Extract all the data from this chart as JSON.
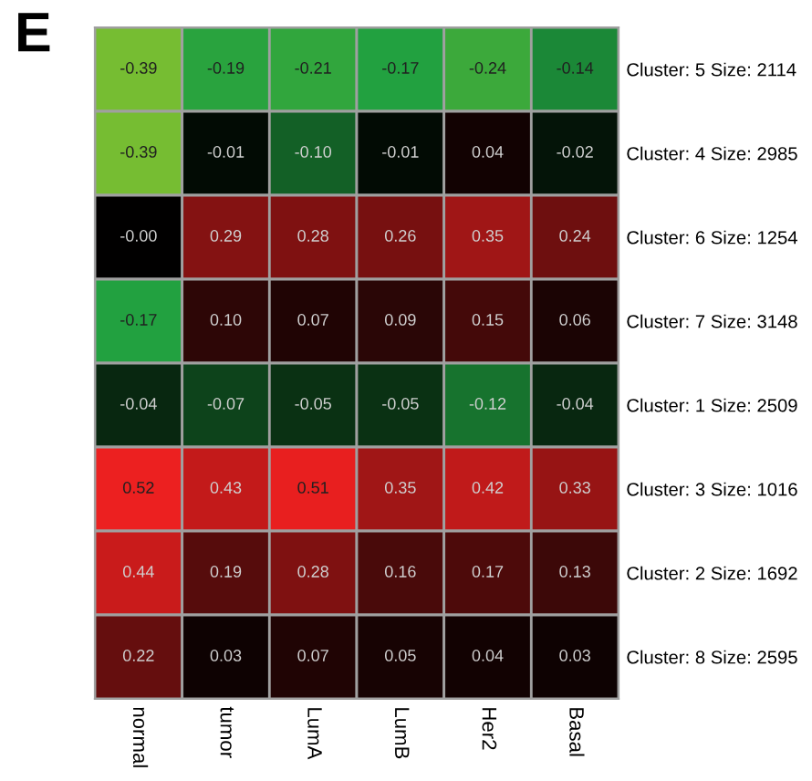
{
  "chart_data": {
    "type": "heatmap",
    "title": "E",
    "categories": [
      "normal",
      "tumor",
      "LumA",
      "LumB",
      "Her2",
      "Basal"
    ],
    "y_categories": [
      "Cluster: 5 Size: 2114",
      "Cluster: 4 Size: 2985",
      "Cluster: 6 Size: 1254",
      "Cluster: 7 Size: 3148",
      "Cluster: 1 Size: 2509",
      "Cluster: 3 Size: 1016",
      "Cluster: 2 Size: 1692",
      "Cluster: 8 Size: 2595"
    ],
    "cells": [
      [
        -0.39,
        -0.19,
        -0.21,
        -0.17,
        -0.24,
        -0.14
      ],
      [
        -0.39,
        -0.01,
        -0.1,
        -0.01,
        0.04,
        -0.02
      ],
      [
        -0.0,
        0.29,
        0.28,
        0.26,
        0.35,
        0.24
      ],
      [
        -0.17,
        0.1,
        0.07,
        0.09,
        0.15,
        0.06
      ],
      [
        -0.04,
        -0.07,
        -0.05,
        -0.05,
        -0.12,
        -0.04
      ],
      [
        0.52,
        0.43,
        0.51,
        0.35,
        0.42,
        0.33
      ],
      [
        0.44,
        0.19,
        0.28,
        0.16,
        0.17,
        0.13
      ],
      [
        0.22,
        0.03,
        0.07,
        0.05,
        0.04,
        0.03
      ]
    ],
    "cell_labels": [
      [
        "-0.39",
        "-0.19",
        "-0.21",
        "-0.17",
        "-0.24",
        "-0.14"
      ],
      [
        "-0.39",
        "-0.01",
        "-0.10",
        "-0.01",
        "0.04",
        "-0.02"
      ],
      [
        "-0.00",
        "0.29",
        "0.28",
        "0.26",
        "0.35",
        "0.24"
      ],
      [
        "-0.17",
        "0.10",
        "0.07",
        "0.09",
        "0.15",
        "0.06"
      ],
      [
        "-0.04",
        "-0.07",
        "-0.05",
        "-0.05",
        "-0.12",
        "-0.04"
      ],
      [
        "0.52",
        "0.43",
        "0.51",
        "0.35",
        "0.42",
        "0.33"
      ],
      [
        "0.44",
        "0.19",
        "0.28",
        "0.16",
        "0.17",
        "0.13"
      ],
      [
        "0.22",
        "0.03",
        "0.07",
        "0.05",
        "0.04",
        "0.03"
      ]
    ]
  }
}
